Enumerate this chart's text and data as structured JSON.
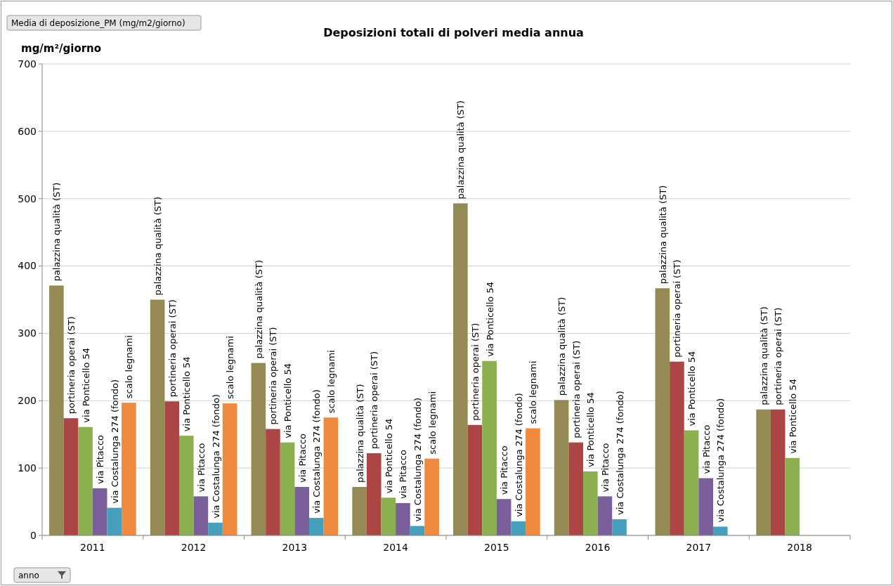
{
  "chart_data": {
    "type": "bar",
    "title": "Deposizioni totali di polveri media annua",
    "ylabel": "mg/m²/giorno",
    "categories": [
      "2011",
      "2012",
      "2013",
      "2014",
      "2015",
      "2016",
      "2017",
      "2018"
    ],
    "series": [
      {
        "name": "palazzina qualità (ST)",
        "color": "#948a54",
        "values": [
          371,
          350,
          256,
          72,
          493,
          201,
          367,
          187
        ]
      },
      {
        "name": "portineria operai (ST)",
        "color": "#ab4644",
        "values": [
          174,
          199,
          158,
          122,
          164,
          138,
          258,
          187
        ]
      },
      {
        "name": "via Ponticello 54",
        "color": "#8cb050",
        "values": [
          161,
          148,
          138,
          56,
          259,
          95,
          156,
          115
        ]
      },
      {
        "name": "via Pitacco",
        "color": "#7a5f9a",
        "values": [
          70,
          58,
          72,
          48,
          54,
          58,
          85,
          null
        ]
      },
      {
        "name": "via Costalunga 274 (fondo)",
        "color": "#45a0bd",
        "values": [
          41,
          19,
          26,
          14,
          21,
          24,
          13,
          null
        ]
      },
      {
        "name": "scalo legnami",
        "color": "#f0883e",
        "values": [
          197,
          196,
          175,
          114,
          159,
          null,
          null,
          null
        ]
      }
    ],
    "ylim": [
      0,
      700
    ],
    "yticks": [
      0,
      100,
      200,
      300,
      400,
      500,
      600,
      700
    ],
    "grid": "y",
    "annotations": [
      "Media di deposizione_PM (mg/m2/giorno)",
      "anno"
    ]
  }
}
